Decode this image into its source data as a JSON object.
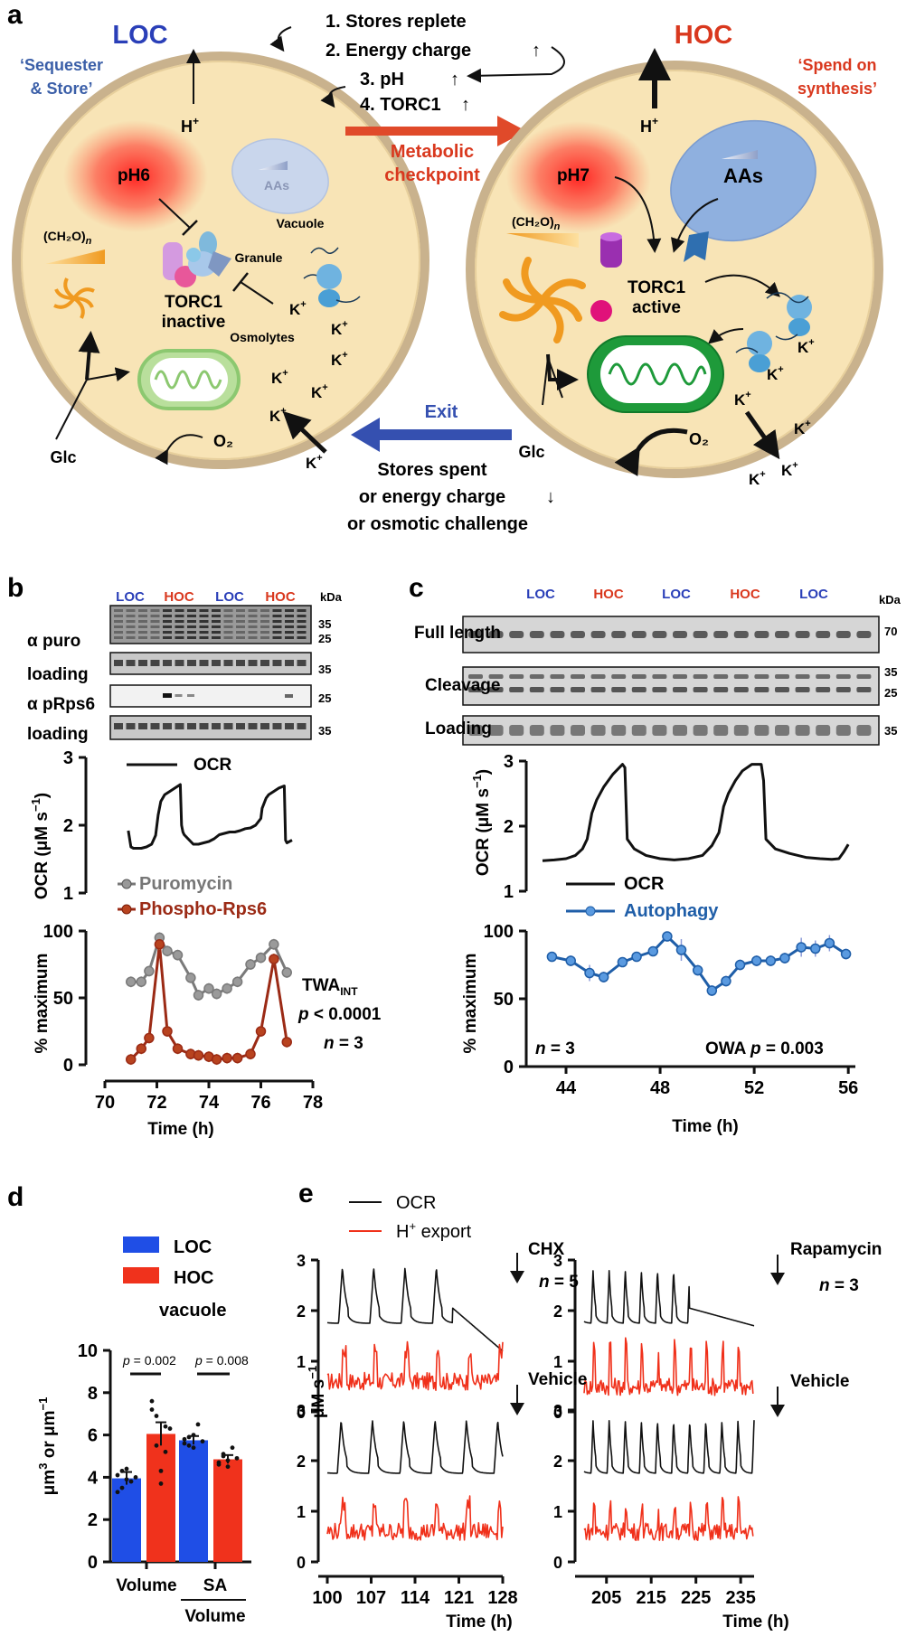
{
  "panel_letters": {
    "a": "a",
    "b": "b",
    "c": "c",
    "d": "d",
    "e": "e"
  },
  "colors": {
    "loc": "#2a3fb8",
    "hoc": "#d9381e",
    "cell_fill": "#f8e4b6",
    "cell_edge": "#c7b08a",
    "mito_light": "#9bd27e",
    "mito_dark": "#1e9a3a",
    "puromycin": "#7a7a7a",
    "phospho": "#9b2a15",
    "autophagy": "#1f5ea8",
    "bar_loc": "#1f4ee6",
    "bar_hoc": "#f0321c",
    "h_export": "#f0301a",
    "vacuole_loc": "#c9d6ec",
    "vacuole_hoc": "#8fb0df"
  },
  "panel_a": {
    "loc_title": "LOC",
    "loc_subtitle_1": "‘Sequester",
    "loc_subtitle_2": "& Store’",
    "hoc_title": "HOC",
    "hoc_subtitle_1": "‘Spend on",
    "hoc_subtitle_2": "synthesis’",
    "steps": [
      "1. Stores replete",
      "2. Energy charge",
      "3. pH",
      "4. TORC1"
    ],
    "checkpoint_1": "Metabolic",
    "checkpoint_2": "checkpoint",
    "exit_label": "Exit",
    "exit_conditions": [
      "Stores spent",
      "or energy charge",
      "or osmotic challenge"
    ],
    "loc_cell": {
      "proton": "H",
      "proton_sup": "+",
      "ph": "pH6",
      "aas": "AAs",
      "vacuole": "Vacuole",
      "granule": "Granule",
      "torc1_1": "TORC1",
      "torc1_2": "inactive",
      "osmolytes": "Osmolytes",
      "carb": "(CH₂O)",
      "carb_n": "n",
      "glc": "Glc",
      "o2": "O₂",
      "k_ion": "K",
      "k_sup": "+"
    },
    "hoc_cell": {
      "proton": "H",
      "proton_sup": "+",
      "ph": "pH7",
      "aas": "AAs",
      "torc1_1": "TORC1",
      "torc1_2": "active",
      "carb": "(CH₂O)",
      "carb_n": "n",
      "glc": "Glc",
      "o2": "O₂",
      "k_ion": "K",
      "k_sup": "+"
    }
  },
  "panel_b": {
    "lanes": [
      "LOC",
      "HOC",
      "LOC",
      "HOC"
    ],
    "kda": "kDa",
    "blot_rows": [
      "α puro",
      "loading",
      "α pRps6",
      "loading"
    ],
    "blot_markers": [
      [
        "35",
        "25"
      ],
      [
        "35"
      ],
      [
        "25"
      ],
      [
        "35"
      ]
    ],
    "ocr_legend": "OCR",
    "ocr_ylabel": "OCR (μM s",
    "ocr_ylabel_sup": "−1",
    "ocr_ylabel_end": ")",
    "legend": [
      "Puromycin",
      "Phospho-Rps6"
    ],
    "ylabel": "% maximum",
    "xlabel": "Time (h)",
    "stats": {
      "twa": "TWA",
      "twa_sub": "INT",
      "p": "p",
      "p_val": " < 0.0001",
      "n": "n",
      "n_val": " = 3"
    }
  },
  "panel_c": {
    "lanes": [
      "LOC",
      "HOC",
      "LOC",
      "HOC",
      "LOC"
    ],
    "kda": "kDa",
    "blot_rows": [
      "Full length",
      "Cleavage",
      "Loading"
    ],
    "blot_markers": [
      [
        "70"
      ],
      [
        "35",
        "25"
      ],
      [
        "35"
      ]
    ],
    "ocr_ylabel": "OCR (μM s",
    "ocr_ylabel_sup": "−1",
    "ocr_ylabel_end": ")",
    "legend": [
      "OCR",
      "Autophagy"
    ],
    "ylabel": "% maximum",
    "xlabel": "Time (h)",
    "stats": {
      "n": "n",
      "n_val": " = 3",
      "owa": "OWA ",
      "p": "p",
      "p_val": " = 0.003"
    }
  },
  "panel_d": {
    "legend": [
      "LOC",
      "HOC"
    ],
    "title": "vacuole",
    "ylabel": "μm",
    "ylabel_sup": "3",
    "ylabel_mid": " or μm",
    "ylabel_sup2": "−1",
    "categories": [
      "Volume",
      "SA"
    ],
    "cat2_denominator": "Volume",
    "p_labels": [
      {
        "p": "p",
        "val": " = 0.002"
      },
      {
        "p": "p",
        "val": " = 0.008"
      }
    ]
  },
  "panel_e": {
    "legend": [
      "OCR",
      "H"
    ],
    "legend_sup": "+",
    "legend_end": " export",
    "ylabel": "μM s",
    "ylabel_sup": "−1",
    "treatments": [
      "CHX",
      "Rapamycin",
      "Vehicle",
      "Vehicle"
    ],
    "n_labels": [
      {
        "n": "n",
        "val": " = 5"
      },
      {
        "n": "n",
        "val": " = 3"
      }
    ],
    "xlabel": "Time (h)"
  },
  "chart_data": [
    {
      "type": "line",
      "id": "b-ocr",
      "title": "",
      "ylabel": "OCR (μM s−1)",
      "ylim": [
        1,
        3
      ],
      "yticks": [
        1,
        2,
        3
      ],
      "x_range": [
        70.9,
        77.2
      ],
      "series": [
        {
          "name": "OCR",
          "x": [
            70.9,
            71.0,
            71.1,
            71.2,
            71.4,
            71.6,
            71.8,
            71.95,
            72.05,
            72.15,
            72.3,
            72.5,
            72.7,
            72.9,
            72.95,
            73.0,
            73.05,
            73.2,
            73.4,
            73.6,
            73.8,
            74.0,
            74.2,
            74.4,
            74.6,
            74.8,
            75.0,
            75.2,
            75.4,
            75.6,
            75.8,
            76.0,
            76.05,
            76.2,
            76.3,
            76.5,
            76.7,
            76.9,
            76.95,
            77.0,
            77.2
          ],
          "y": [
            1.92,
            1.68,
            1.66,
            1.66,
            1.66,
            1.68,
            1.72,
            1.85,
            2.15,
            2.35,
            2.45,
            2.5,
            2.55,
            2.6,
            2.0,
            1.9,
            1.86,
            1.8,
            1.72,
            1.72,
            1.74,
            1.76,
            1.8,
            1.86,
            1.88,
            1.9,
            1.9,
            1.92,
            1.95,
            1.96,
            2.0,
            2.1,
            2.25,
            2.4,
            2.45,
            2.5,
            2.55,
            2.58,
            1.78,
            1.74,
            1.78
          ]
        }
      ]
    },
    {
      "type": "line",
      "id": "b-percent",
      "title": "",
      "xlabel": "Time (h)",
      "ylabel": "% maximum",
      "xlim": [
        70,
        78
      ],
      "ylim": [
        0,
        100
      ],
      "xticks": [
        70,
        72,
        74,
        76,
        78
      ],
      "yticks": [
        0,
        50,
        100
      ],
      "series": [
        {
          "name": "Puromycin",
          "x": [
            71.0,
            71.4,
            71.7,
            72.1,
            72.4,
            72.8,
            73.3,
            73.6,
            74.0,
            74.3,
            74.7,
            75.1,
            75.6,
            76.0,
            76.5,
            77.0
          ],
          "y": [
            62,
            62,
            70,
            95,
            85,
            82,
            65,
            52,
            57,
            53,
            57,
            62,
            75,
            80,
            90,
            69
          ]
        },
        {
          "name": "Phospho-Rps6",
          "x": [
            71.0,
            71.4,
            71.7,
            72.1,
            72.4,
            72.8,
            73.3,
            73.6,
            74.0,
            74.3,
            74.7,
            75.1,
            75.6,
            76.0,
            76.5,
            77.0
          ],
          "y": [
            4,
            12,
            20,
            90,
            25,
            12,
            8,
            7,
            6,
            4,
            5,
            5,
            8,
            25,
            79,
            17
          ]
        }
      ]
    },
    {
      "type": "line",
      "id": "c-ocr",
      "title": "",
      "ylabel": "OCR (μM s−1)",
      "ylim": [
        1,
        3
      ],
      "yticks": [
        1,
        2,
        3
      ],
      "x_range": [
        43,
        56
      ],
      "series": [
        {
          "name": "OCR",
          "x": [
            43.0,
            43.5,
            44.0,
            44.4,
            44.7,
            44.9,
            45.1,
            45.3,
            45.6,
            46.0,
            46.4,
            46.5,
            46.6,
            46.9,
            47.4,
            48.0,
            48.6,
            49.2,
            49.8,
            50.2,
            50.5,
            50.7,
            50.9,
            51.2,
            51.5,
            51.9,
            52.3,
            52.4,
            52.5,
            52.9,
            53.5,
            54.2,
            54.8,
            55.3,
            55.6,
            55.8,
            56.0
          ],
          "y": [
            1.47,
            1.48,
            1.5,
            1.55,
            1.65,
            1.8,
            2.2,
            2.4,
            2.6,
            2.8,
            2.95,
            2.9,
            1.8,
            1.65,
            1.55,
            1.5,
            1.48,
            1.5,
            1.55,
            1.7,
            1.9,
            2.3,
            2.5,
            2.7,
            2.85,
            2.95,
            2.95,
            2.7,
            1.8,
            1.65,
            1.58,
            1.52,
            1.5,
            1.49,
            1.5,
            1.6,
            1.72
          ]
        }
      ]
    },
    {
      "type": "line",
      "id": "c-percent",
      "title": "",
      "xlabel": "Time (h)",
      "ylabel": "% maximum",
      "xlim": [
        43,
        56.3
      ],
      "ylim": [
        0,
        100
      ],
      "xticks": [
        44,
        48,
        52,
        56
      ],
      "yticks": [
        0,
        50,
        100
      ],
      "series": [
        {
          "name": "Autophagy",
          "x": [
            43.4,
            44.2,
            45.0,
            45.6,
            46.4,
            47.0,
            47.7,
            48.3,
            48.9,
            49.6,
            50.2,
            50.8,
            51.4,
            52.1,
            52.7,
            53.3,
            54.0,
            54.6,
            55.2,
            55.9
          ],
          "y": [
            81,
            78,
            69,
            66,
            77,
            81,
            85,
            96,
            86,
            71,
            56,
            63,
            75,
            78,
            78,
            80,
            88,
            87,
            91,
            83
          ],
          "err": [
            3,
            4,
            6,
            4,
            3,
            3,
            3,
            3,
            8,
            4,
            4,
            4,
            4,
            4,
            4,
            4,
            7,
            6,
            6,
            4
          ]
        }
      ]
    },
    {
      "type": "bar",
      "id": "d",
      "title": "vacuole",
      "categories": [
        "Volume",
        "SA/Volume"
      ],
      "ylabel": "μm3 or μm−1",
      "ylim": [
        0,
        10
      ],
      "yticks": [
        0,
        2,
        4,
        6,
        8,
        10
      ],
      "series": [
        {
          "name": "LOC",
          "values": [
            3.95,
            5.75
          ],
          "err": [
            0.3,
            0.2
          ],
          "points": [
            [
              4.1,
              3.5,
              4.4,
              3.8,
              4.0,
              3.3,
              4.3,
              3.9
            ],
            [
              5.8,
              5.5,
              6.0,
              6.5,
              5.7,
              5.6,
              5.9,
              5.4
            ]
          ]
        },
        {
          "name": "HOC",
          "values": [
            6.05,
            4.85
          ],
          "err": [
            0.55,
            0.2
          ],
          "points": [
            [
              7.6,
              6.9,
              4.3,
              5.2,
              6.3,
              7.2,
              5.5,
              3.7,
              6.4
            ],
            [
              4.7,
              5.1,
              4.8,
              5.4,
              4.9,
              4.6,
              5.0,
              4.5
            ]
          ]
        }
      ]
    },
    {
      "type": "line",
      "id": "e-chx",
      "ylim": [
        0,
        3
      ],
      "yticks": [
        0,
        1,
        2,
        3
      ],
      "xlim": [
        100,
        128
      ],
      "series": [
        {
          "name": "OCR",
          "period": 5.0,
          "first_peak": 102.4,
          "base": 1.75,
          "peak": 2.85,
          "end_treatment": 120.0,
          "final": 1.2
        },
        {
          "name": "H+ export",
          "base": 0.6,
          "peak": 1.3
        }
      ]
    },
    {
      "type": "line",
      "id": "e-rapamycin",
      "ylim": [
        0,
        3
      ],
      "yticks": [
        0,
        1,
        2,
        3
      ],
      "xlim": [
        200,
        238
      ],
      "series": [
        {
          "name": "OCR",
          "period": 3.6,
          "first_peak": 202.0,
          "base": 1.75,
          "peak": 2.8,
          "end_treatment": 223.5,
          "final": 1.7
        },
        {
          "name": "H+ export",
          "base": 0.5,
          "peak": 1.4
        }
      ]
    },
    {
      "type": "line",
      "id": "e-vehicle-1",
      "ylim": [
        0,
        3
      ],
      "yticks": [
        0,
        1,
        2,
        3
      ],
      "xlim": [
        100,
        128
      ],
      "xticks": [
        100,
        107,
        114,
        121,
        128
      ],
      "xlabel": "Time (h)",
      "series": [
        {
          "name": "OCR",
          "period": 5.0,
          "first_peak": 102.2,
          "base": 1.75,
          "peak": 2.8
        },
        {
          "name": "H+ export",
          "base": 0.6,
          "peak": 1.2
        }
      ]
    },
    {
      "type": "line",
      "id": "e-vehicle-2",
      "ylim": [
        0,
        3
      ],
      "yticks": [
        0,
        1,
        2,
        3
      ],
      "xlim": [
        200,
        238
      ],
      "xticks": [
        205,
        215,
        225,
        235
      ],
      "xlabel": "Time (h)",
      "series": [
        {
          "name": "OCR",
          "period": 3.6,
          "first_peak": 202.0,
          "base": 1.75,
          "peak": 2.8
        },
        {
          "name": "H+ export",
          "base": 0.6,
          "peak": 1.2
        }
      ]
    }
  ]
}
